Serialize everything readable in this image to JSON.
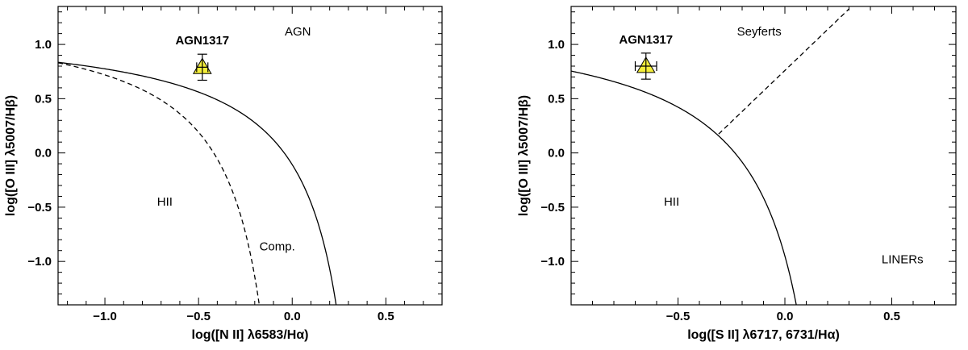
{
  "chart_data": [
    {
      "type": "scatter",
      "xlabel": "log([N II] λ6583/Hα)",
      "ylabel": "log([O III] λ5007/Hβ)",
      "xlim": [
        -1.25,
        0.8
      ],
      "ylim": [
        -1.4,
        1.35
      ],
      "xticks": [
        -1.0,
        -0.5,
        0.0,
        0.5
      ],
      "xtick_labels": [
        "−1.0",
        "−0.5",
        "0.0",
        "0.5"
      ],
      "yticks": [
        -1.0,
        -0.5,
        0.0,
        0.5,
        1.0
      ],
      "ytick_labels": [
        "−1.0",
        "−0.5",
        "0.0",
        "0.5",
        "1.0"
      ],
      "curves": [
        {
          "name": "solid",
          "style": "solid",
          "formula": "0.61/(x-0.47)+1.19",
          "x_range": [
            -1.25,
            0.235
          ]
        },
        {
          "name": "dashed",
          "style": "dashed",
          "formula": "0.61/(x-0.05)+1.30",
          "x_range": [
            -1.25,
            -0.17
          ]
        }
      ],
      "region_labels": [
        {
          "text": "AGN",
          "x": 0.03,
          "y": 1.12
        },
        {
          "text": "HII",
          "x": -0.68,
          "y": -0.45
        },
        {
          "text": "Comp.",
          "x": -0.08,
          "y": -0.86
        }
      ],
      "points": [
        {
          "label": "AGN1317",
          "x": -0.48,
          "y": 0.79,
          "xerr": 0.03,
          "yerr": 0.12,
          "marker": "triangle",
          "color": "#f4ee3a"
        }
      ]
    },
    {
      "type": "scatter",
      "xlabel": "log([S II] λ6717, 6731/Hα)",
      "ylabel": "log([O III] λ5007/Hβ)",
      "xlim": [
        -1.0,
        0.8
      ],
      "ylim": [
        -1.4,
        1.35
      ],
      "xticks": [
        -0.5,
        0.0,
        0.5
      ],
      "xtick_labels": [
        "−0.5",
        "0.0",
        "0.5"
      ],
      "yticks": [
        -1.0,
        -0.5,
        0.0,
        0.5,
        1.0
      ],
      "ytick_labels": [
        "−1.0",
        "−0.5",
        "0.0",
        "0.5",
        "1.0"
      ],
      "curves": [
        {
          "name": "solid",
          "style": "solid",
          "formula": "0.72/(x-0.32)+1.30",
          "x_range": [
            -1.0,
            0.055
          ]
        },
        {
          "name": "dashed",
          "style": "dashed",
          "formula": "1.89*x+0.76",
          "x_range": [
            -0.31,
            0.3
          ]
        }
      ],
      "region_labels": [
        {
          "text": "Seyferts",
          "x": -0.12,
          "y": 1.12
        },
        {
          "text": "HII",
          "x": -0.53,
          "y": -0.45
        },
        {
          "text": "LINERs",
          "x": 0.55,
          "y": -0.98
        }
      ],
      "points": [
        {
          "label": "AGN1317",
          "x": -0.65,
          "y": 0.8,
          "xerr": 0.05,
          "yerr": 0.12,
          "marker": "triangle",
          "color": "#f4ee3a"
        }
      ]
    }
  ]
}
